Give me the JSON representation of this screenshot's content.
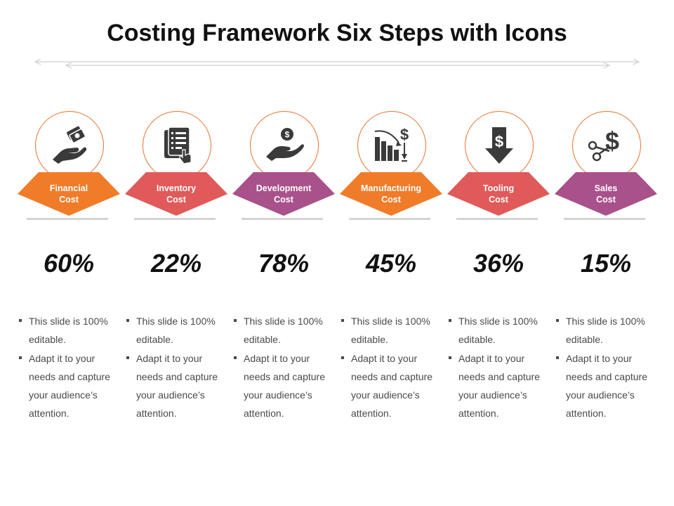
{
  "title": "Costing Framework Six Steps with Icons",
  "steps": [
    {
      "label": "Financial\nCost",
      "percent": "60%",
      "color": "#f07c2a",
      "icon": "hand-money-icon",
      "bullets": [
        "This slide is 100% editable.",
        "Adapt it to your needs and capture your audience’s attention."
      ]
    },
    {
      "label": "Inventory\nCost",
      "percent": "22%",
      "color": "#e05a5a",
      "icon": "inventory-document-icon",
      "bullets": [
        "This slide is 100% editable.",
        "Adapt it to your needs and capture your audience’s attention."
      ]
    },
    {
      "label": "Development\nCost",
      "percent": "78%",
      "color": "#a8518a",
      "icon": "hand-coin-icon",
      "bullets": [
        "This slide is 100% editable.",
        "Adapt it to your needs and capture your audience’s attention."
      ]
    },
    {
      "label": "Manufacturing\nCost",
      "percent": "45%",
      "color": "#f07c2a",
      "icon": "bar-chart-dollar-icon",
      "bullets": [
        "This slide is 100% editable.",
        "Adapt it to your needs and capture your audience’s attention."
      ]
    },
    {
      "label": "Tooling\nCost",
      "percent": "36%",
      "color": "#e05a5a",
      "icon": "dollar-down-arrow-icon",
      "bullets": [
        "This slide is 100% editable.",
        "Adapt it to your needs and capture your audience’s attention."
      ]
    },
    {
      "label": "Sales\nCost",
      "percent": "15%",
      "color": "#a8518a",
      "icon": "scissors-dollar-icon",
      "bullets": [
        "This slide is 100% editable.",
        "Adapt it to your needs and capture your audience’s attention."
      ]
    }
  ]
}
